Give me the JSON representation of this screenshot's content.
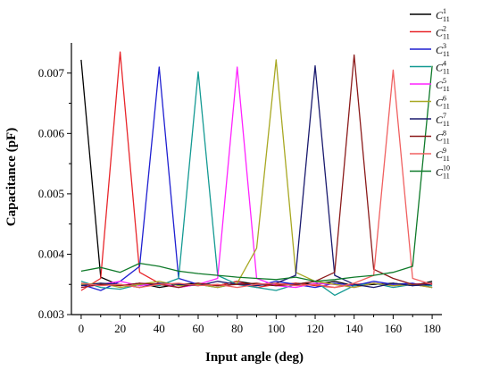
{
  "chart_data": {
    "type": "line",
    "xlabel": "Input angle (deg)",
    "ylabel": "Capacitance (pF)",
    "xlim": [
      -5,
      185
    ],
    "ylim": [
      0.003,
      0.0075
    ],
    "xticks": [
      0,
      20,
      40,
      60,
      80,
      100,
      120,
      140,
      160,
      180
    ],
    "yticks": [
      0.003,
      0.004,
      0.005,
      0.006,
      0.007
    ],
    "ytick_labels": [
      "0.003",
      "0.004",
      "0.005",
      "0.006",
      "0.007"
    ],
    "legend_position": "top-right",
    "x": [
      0,
      10,
      20,
      30,
      40,
      50,
      60,
      70,
      80,
      90,
      100,
      110,
      120,
      130,
      140,
      150,
      160,
      170,
      180
    ],
    "series": [
      {
        "label": "C",
        "sup": "1",
        "sub": "11",
        "color": "#000000",
        "values": [
          0.00722,
          0.00362,
          0.00348,
          0.00352,
          0.00345,
          0.0035,
          0.00352,
          0.00348,
          0.00355,
          0.0035,
          0.00348,
          0.00352,
          0.0035,
          0.00355,
          0.00348,
          0.0035,
          0.00352,
          0.00348,
          0.00355
        ]
      },
      {
        "label": "C",
        "sup": "2",
        "sub": "11",
        "color": "#e8262b",
        "values": [
          0.0034,
          0.0036,
          0.00735,
          0.0037,
          0.00352,
          0.00345,
          0.0035,
          0.00348,
          0.00355,
          0.00345,
          0.0035,
          0.00352,
          0.00348,
          0.00345,
          0.0035,
          0.00352,
          0.00348,
          0.0035,
          0.00345
        ]
      },
      {
        "label": "C",
        "sup": "3",
        "sub": "11",
        "color": "#1f1fd1",
        "values": [
          0.0035,
          0.0034,
          0.00355,
          0.0038,
          0.0071,
          0.0036,
          0.0035,
          0.00345,
          0.00352,
          0.00348,
          0.00355,
          0.0035,
          0.00345,
          0.00352,
          0.00348,
          0.00355,
          0.0035,
          0.00352,
          0.00345
        ]
      },
      {
        "label": "C",
        "sup": "4",
        "sub": "11",
        "color": "#149a93",
        "values": [
          0.00355,
          0.00345,
          0.00342,
          0.0035,
          0.00348,
          0.0036,
          0.00702,
          0.00365,
          0.0035,
          0.00345,
          0.0034,
          0.0035,
          0.00355,
          0.00332,
          0.00348,
          0.00352,
          0.00345,
          0.0035,
          0.00348
        ]
      },
      {
        "label": "C",
        "sup": "5",
        "sub": "11",
        "color": "#ff22ff",
        "values": [
          0.00345,
          0.0035,
          0.00355,
          0.00348,
          0.00352,
          0.00345,
          0.0035,
          0.0036,
          0.0071,
          0.0036,
          0.00348,
          0.00345,
          0.00352,
          0.0035,
          0.00345,
          0.00352,
          0.00348,
          0.0035,
          0.00352
        ]
      },
      {
        "label": "C",
        "sup": "6",
        "sub": "11",
        "color": "#a8a823",
        "values": [
          0.0035,
          0.00352,
          0.00345,
          0.0035,
          0.00355,
          0.00348,
          0.0035,
          0.00345,
          0.00352,
          0.0041,
          0.00722,
          0.0037,
          0.00355,
          0.0035,
          0.00345,
          0.00352,
          0.00348,
          0.0035,
          0.00345
        ]
      },
      {
        "label": "C",
        "sup": "7",
        "sub": "11",
        "color": "#1a1a6e",
        "values": [
          0.00348,
          0.00352,
          0.0035,
          0.00345,
          0.00352,
          0.0035,
          0.00348,
          0.00355,
          0.0035,
          0.00348,
          0.00352,
          0.00365,
          0.00712,
          0.00365,
          0.0035,
          0.00345,
          0.00352,
          0.00348,
          0.0035
        ]
      },
      {
        "label": "C",
        "sup": "8",
        "sub": "11",
        "color": "#8b1a1a",
        "values": [
          0.00345,
          0.0035,
          0.00348,
          0.00352,
          0.0035,
          0.00345,
          0.00352,
          0.00348,
          0.0035,
          0.00352,
          0.00348,
          0.0035,
          0.00355,
          0.0037,
          0.0073,
          0.00375,
          0.0036,
          0.0035,
          0.00352
        ]
      },
      {
        "label": "C",
        "sup": "9",
        "sub": "11",
        "color": "#f06060",
        "values": [
          0.00352,
          0.00348,
          0.0035,
          0.00345,
          0.0035,
          0.00352,
          0.00348,
          0.0035,
          0.00345,
          0.0035,
          0.00352,
          0.00348,
          0.0035,
          0.00345,
          0.00352,
          0.00365,
          0.00705,
          0.0036,
          0.0035
        ]
      },
      {
        "label": "C",
        "sup": "10",
        "sub": "11",
        "color": "#0f7a2a",
        "values": [
          0.00372,
          0.00378,
          0.0037,
          0.00385,
          0.0038,
          0.00372,
          0.00368,
          0.00365,
          0.00362,
          0.0036,
          0.00358,
          0.00362,
          0.00355,
          0.00358,
          0.00362,
          0.00365,
          0.0037,
          0.0038,
          0.00712
        ]
      }
    ]
  }
}
